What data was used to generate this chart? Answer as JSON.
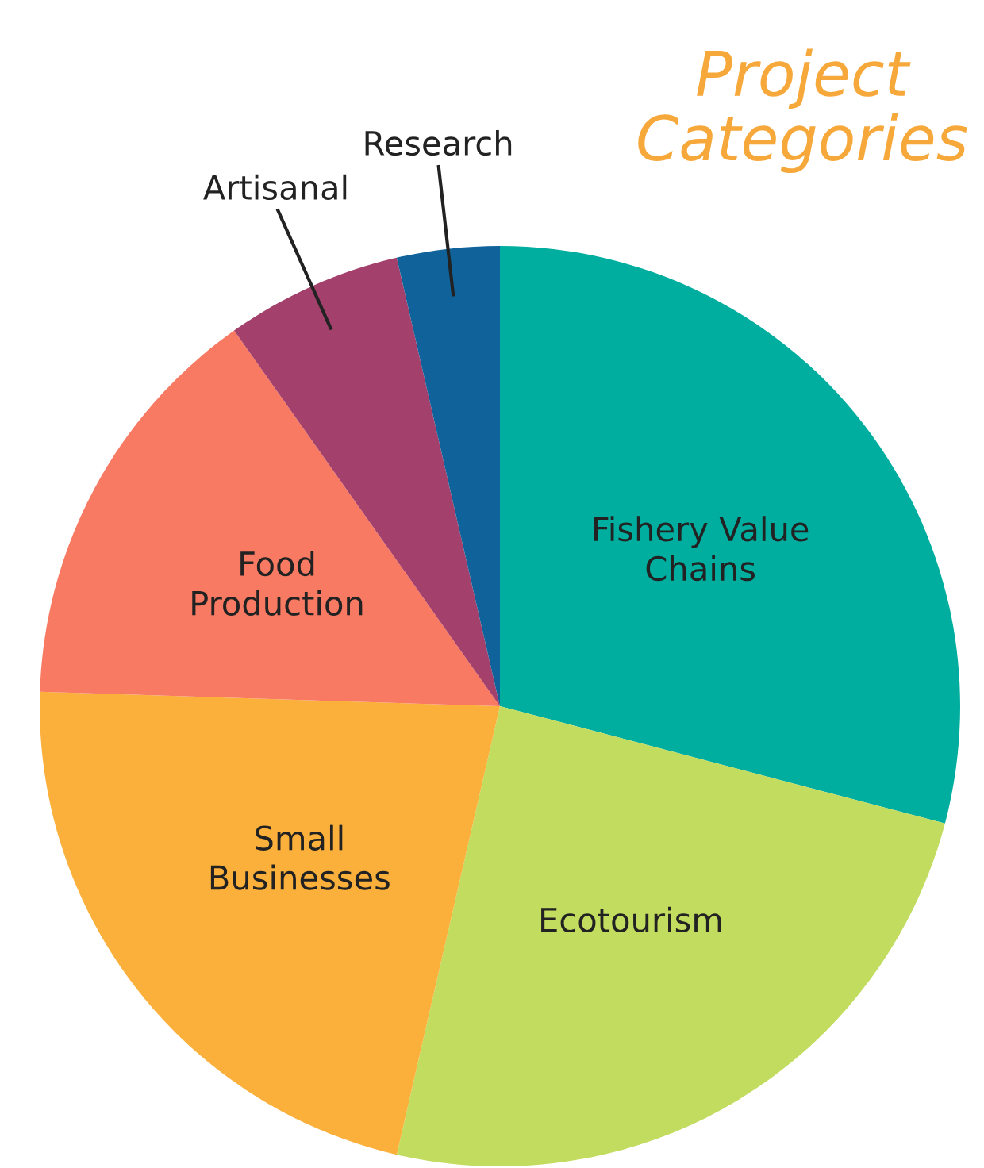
{
  "chart_data": {
    "type": "pie",
    "title": "Project Categories",
    "categories": [
      "Fishery Value Chains",
      "Ecotourism",
      "Small Businesses",
      "Food Production",
      "Artisanal",
      "Research"
    ],
    "values": [
      29.1,
      24.5,
      21.9,
      14.7,
      6.2,
      3.6
    ],
    "colors": [
      "#00ae9f",
      "#c1dc5e",
      "#fbb03b",
      "#f87a63",
      "#a3406b",
      "#10629a"
    ]
  }
}
